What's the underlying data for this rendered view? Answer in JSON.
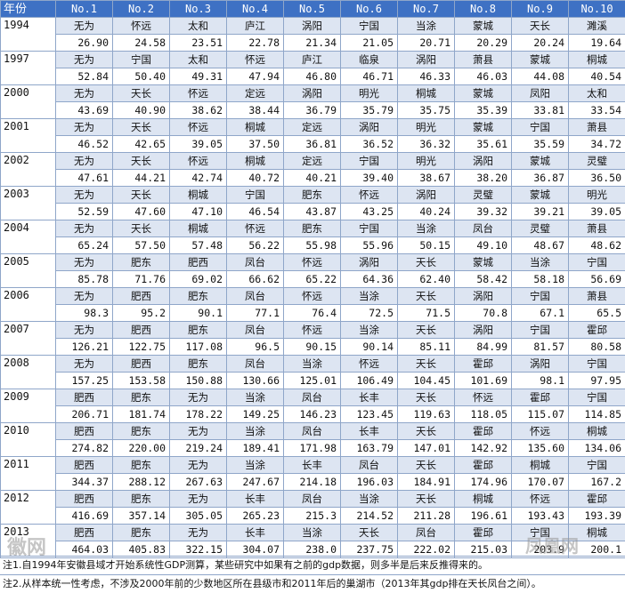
{
  "header": {
    "year_label": "年份",
    "ranks": [
      "No.1",
      "No.2",
      "No.3",
      "No.4",
      "No.5",
      "No.6",
      "No.7",
      "No.8",
      "No.9",
      "No.10"
    ]
  },
  "rows": [
    {
      "year": "1994",
      "names": [
        "无为",
        "怀远",
        "太和",
        "庐江",
        "涡阳",
        "宁国",
        "当涂",
        "蒙城",
        "天长",
        "濉溪"
      ],
      "values": [
        "26.90",
        "24.58",
        "23.51",
        "22.78",
        "21.34",
        "21.05",
        "20.71",
        "20.29",
        "20.24",
        "19.64"
      ]
    },
    {
      "year": "1997",
      "names": [
        "无为",
        "宁国",
        "太和",
        "怀远",
        "庐江",
        "临泉",
        "涡阳",
        "萧县",
        "蒙城",
        "桐城"
      ],
      "values": [
        "52.84",
        "50.40",
        "49.31",
        "47.94",
        "46.80",
        "46.71",
        "46.33",
        "46.03",
        "44.08",
        "40.54"
      ]
    },
    {
      "year": "2000",
      "names": [
        "无为",
        "天长",
        "怀远",
        "定远",
        "涡阳",
        "明光",
        "桐城",
        "蒙城",
        "凤阳",
        "太和"
      ],
      "values": [
        "43.69",
        "40.90",
        "38.62",
        "38.44",
        "36.79",
        "35.79",
        "35.75",
        "35.39",
        "33.81",
        "33.54"
      ]
    },
    {
      "year": "2001",
      "names": [
        "无为",
        "天长",
        "怀远",
        "桐城",
        "定远",
        "涡阳",
        "明光",
        "蒙城",
        "宁国",
        "萧县"
      ],
      "values": [
        "46.52",
        "42.65",
        "39.05",
        "37.50",
        "36.81",
        "36.52",
        "36.32",
        "35.61",
        "35.59",
        "34.72"
      ]
    },
    {
      "year": "2002",
      "names": [
        "无为",
        "天长",
        "怀远",
        "桐城",
        "定远",
        "宁国",
        "明光",
        "涡阳",
        "蒙城",
        "灵璧"
      ],
      "values": [
        "47.61",
        "44.21",
        "42.74",
        "40.72",
        "40.21",
        "39.40",
        "38.67",
        "38.20",
        "36.87",
        "36.50"
      ]
    },
    {
      "year": "2003",
      "names": [
        "无为",
        "天长",
        "桐城",
        "宁国",
        "肥东",
        "怀远",
        "涡阳",
        "灵璧",
        "蒙城",
        "明光"
      ],
      "values": [
        "52.59",
        "47.60",
        "47.10",
        "46.54",
        "43.87",
        "43.25",
        "40.24",
        "39.32",
        "39.21",
        "39.05"
      ]
    },
    {
      "year": "2004",
      "names": [
        "无为",
        "天长",
        "桐城",
        "怀远",
        "肥东",
        "宁国",
        "当涂",
        "凤台",
        "灵璧",
        "萧县"
      ],
      "values": [
        "65.24",
        "57.50",
        "57.48",
        "56.22",
        "55.98",
        "55.96",
        "50.15",
        "49.10",
        "48.67",
        "48.62"
      ]
    },
    {
      "year": "2005",
      "names": [
        "无为",
        "肥东",
        "肥西",
        "凤台",
        "怀远",
        "涡阳",
        "天长",
        "蒙城",
        "当涂",
        "宁国"
      ],
      "values": [
        "85.78",
        "71.76",
        "69.02",
        "66.62",
        "65.22",
        "64.36",
        "62.40",
        "58.42",
        "58.18",
        "56.69"
      ]
    },
    {
      "year": "2006",
      "names": [
        "无为",
        "肥西",
        "肥东",
        "凤台",
        "怀远",
        "当涂",
        "天长",
        "涡阳",
        "宁国",
        "萧县"
      ],
      "values": [
        "98.3",
        "95.2",
        "90.1",
        "77.1",
        "76.4",
        "72.5",
        "71.5",
        "70.8",
        "67.1",
        "65.5"
      ]
    },
    {
      "year": "2007",
      "names": [
        "无为",
        "肥西",
        "肥东",
        "凤台",
        "怀远",
        "当涂",
        "天长",
        "涡阳",
        "宁国",
        "霍邱"
      ],
      "values": [
        "126.21",
        "122.75",
        "117.08",
        "96.5",
        "90.15",
        "90.14",
        "85.11",
        "84.99",
        "81.57",
        "80.58"
      ]
    },
    {
      "year": "2008",
      "names": [
        "无为",
        "肥西",
        "肥东",
        "凤台",
        "当涂",
        "怀远",
        "天长",
        "霍邱",
        "涡阳",
        "宁国"
      ],
      "values": [
        "157.25",
        "153.58",
        "150.88",
        "130.66",
        "125.01",
        "106.49",
        "104.45",
        "101.69",
        "98.1",
        "97.95"
      ]
    },
    {
      "year": "2009",
      "names": [
        "肥西",
        "肥东",
        "无为",
        "当涂",
        "凤台",
        "长丰",
        "天长",
        "怀远",
        "霍邱",
        "宁国"
      ],
      "values": [
        "206.71",
        "181.74",
        "178.22",
        "149.25",
        "146.23",
        "123.45",
        "119.63",
        "118.05",
        "115.07",
        "114.85"
      ]
    },
    {
      "year": "2010",
      "names": [
        "肥西",
        "肥东",
        "无为",
        "当涂",
        "凤台",
        "长丰",
        "天长",
        "霍邱",
        "怀远",
        "桐城"
      ],
      "values": [
        "274.82",
        "220.00",
        "219.24",
        "189.41",
        "171.98",
        "163.79",
        "147.01",
        "142.92",
        "135.60",
        "134.06"
      ]
    },
    {
      "year": "2011",
      "names": [
        "肥西",
        "肥东",
        "无为",
        "当涂",
        "长丰",
        "凤台",
        "天长",
        "霍邱",
        "桐城",
        "宁国"
      ],
      "values": [
        "344.37",
        "288.12",
        "267.63",
        "247.67",
        "214.18",
        "196.03",
        "184.91",
        "174.96",
        "170.07",
        "167.2"
      ]
    },
    {
      "year": "2012",
      "names": [
        "肥西",
        "肥东",
        "无为",
        "长丰",
        "凤台",
        "当涂",
        "天长",
        "桐城",
        "怀远",
        "霍邱"
      ],
      "values": [
        "416.69",
        "357.14",
        "305.05",
        "265.23",
        "215.3",
        "214.52",
        "211.28",
        "196.61",
        "193.43",
        "193.39"
      ]
    },
    {
      "year": "2013",
      "names": [
        "肥西",
        "肥东",
        "无为",
        "长丰",
        "当涂",
        "天长",
        "凤台",
        "霍邱",
        "宁国",
        "桐城"
      ],
      "values": [
        "464.03",
        "405.83",
        "322.15",
        "304.07",
        "238.0",
        "237.75",
        "222.02",
        "215.03",
        "203.9",
        "200.1"
      ]
    }
  ],
  "notes": [
    "注1.自1994年安徽县域才开始系统性GDP测算，某些研究中如果有之前的gdp数据，则多半是后来反推得来的。",
    "注2.从样本统一性考虑，不涉及2000年前的少数地区所在县级市和2011年后的巢湖市（2013年其gdp排在天长凤台之间）。"
  ],
  "watermarks": {
    "left": "徽网",
    "right": "凤凰网"
  }
}
